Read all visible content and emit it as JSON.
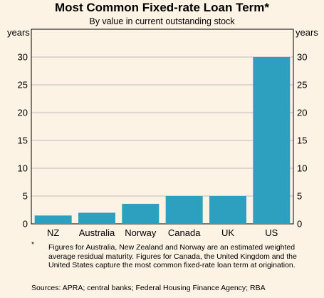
{
  "chart_data": {
    "type": "bar",
    "title": "Most Common Fixed-rate Loan Term*",
    "subtitle": "By value in current outstanding stock",
    "ylabel": "years",
    "ylabel_right": "years",
    "ylim": [
      0,
      35
    ],
    "yticks": [
      0,
      5,
      10,
      15,
      20,
      25,
      30
    ],
    "categories": [
      "NZ",
      "Australia",
      "Norway",
      "Canada",
      "UK",
      "US"
    ],
    "values": [
      1.5,
      2,
      3.6,
      5,
      5,
      30
    ],
    "bar_color": "#2d9fbf",
    "grid": true,
    "grid_color": "#bbbbbb",
    "footnote_marker": "*",
    "footnote": "Figures for Australia, New Zealand and Norway are an estimated weighted average residual maturity. Figures for Canada, the United Kingdom and the United States capture the most common fixed-rate loan term at origination.",
    "sources": "Sources: APRA; central banks; Federal Housing Finance Agency; RBA"
  }
}
